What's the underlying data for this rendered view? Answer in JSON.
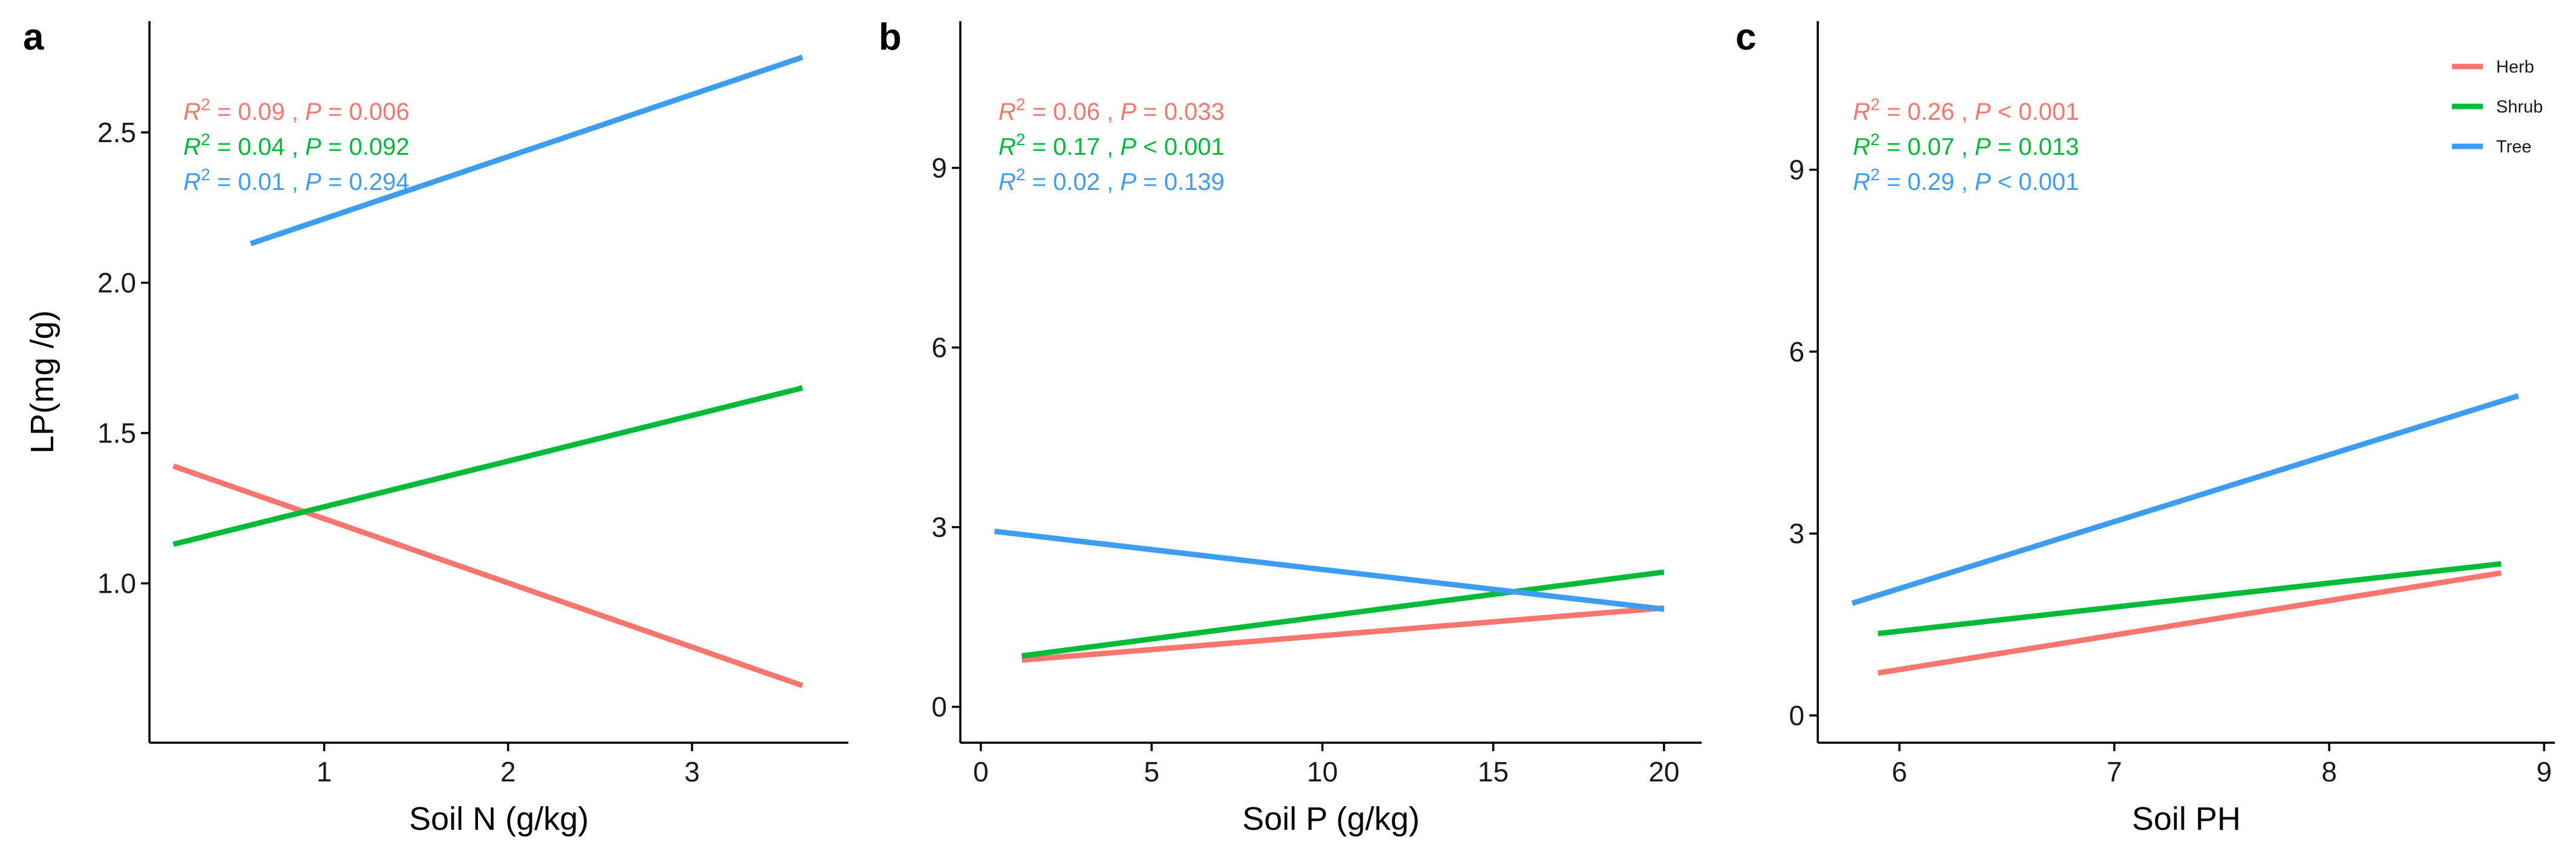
{
  "colors": {
    "Herb": "#f8766d",
    "Shrub": "#00ba38",
    "Tree": "#3d9df3",
    "axis": "#000000"
  },
  "legend": {
    "placement": "top-right",
    "entries": [
      "Herb",
      "Shrub",
      "Tree"
    ]
  },
  "chart_data": [
    {
      "type": "line",
      "panel": "a",
      "title": "",
      "xlabel": "Soil N (g/kg)",
      "ylabel": "LP(mg /g)",
      "xlim": [
        0.05,
        3.85
      ],
      "ylim": [
        0.47,
        2.87
      ],
      "xticks": [
        1,
        2,
        3
      ],
      "yticks": [
        1.0,
        1.5,
        2.0,
        2.5
      ],
      "ytick_labels": [
        "1.0",
        "1.5",
        "2.0",
        "2.5"
      ],
      "series": [
        {
          "name": "Herb",
          "x": [
            0.18,
            3.6
          ],
          "y": [
            1.39,
            0.66
          ]
        },
        {
          "name": "Shrub",
          "x": [
            0.18,
            3.6
          ],
          "y": [
            1.13,
            1.65
          ]
        },
        {
          "name": "Tree",
          "x": [
            0.6,
            3.6
          ],
          "y": [
            2.13,
            2.75
          ]
        }
      ],
      "annotations": [
        {
          "series": "Herb",
          "r2": "0.09",
          "p_op": "=",
          "p": "0.006"
        },
        {
          "series": "Shrub",
          "r2": "0.04",
          "p_op": "=",
          "p": "0.092"
        },
        {
          "series": "Tree",
          "r2": "0.01",
          "p_op": "=",
          "p": "0.294"
        }
      ]
    },
    {
      "type": "line",
      "panel": "b",
      "title": "",
      "xlabel": "Soil  P (g/kg)",
      "ylabel": "",
      "xlim": [
        -0.6,
        21.1
      ],
      "ylim": [
        -0.6,
        11.45
      ],
      "xticks": [
        0,
        5,
        10,
        15,
        20
      ],
      "yticks": [
        0,
        3,
        6,
        9
      ],
      "ytick_labels": [
        "0",
        "3",
        "6",
        "9"
      ],
      "series": [
        {
          "name": "Herb",
          "x": [
            1.2,
            20
          ],
          "y": [
            0.78,
            1.65
          ]
        },
        {
          "name": "Shrub",
          "x": [
            1.2,
            20
          ],
          "y": [
            0.85,
            2.25
          ]
        },
        {
          "name": "Tree",
          "x": [
            0.4,
            20
          ],
          "y": [
            2.93,
            1.63
          ]
        }
      ],
      "annotations": [
        {
          "series": "Herb",
          "r2": "0.06",
          "p_op": "=",
          "p": "0.033"
        },
        {
          "series": "Shrub",
          "r2": "0.17",
          "p_op": "<",
          "p": "0.001"
        },
        {
          "series": "Tree",
          "r2": "0.02",
          "p_op": "=",
          "p": "0.139"
        }
      ]
    },
    {
      "type": "line",
      "panel": "c",
      "title": "",
      "xlabel": "Soil PH",
      "ylabel": "",
      "xlim": [
        5.62,
        9.05
      ],
      "ylim": [
        -0.45,
        11.45
      ],
      "xticks": [
        6,
        7,
        8,
        9
      ],
      "yticks": [
        0,
        3,
        6,
        9
      ],
      "ytick_labels": [
        "0",
        "3",
        "6",
        "9"
      ],
      "series": [
        {
          "name": "Herb",
          "x": [
            5.9,
            8.8
          ],
          "y": [
            0.7,
            2.35
          ]
        },
        {
          "name": "Shrub",
          "x": [
            5.9,
            8.8
          ],
          "y": [
            1.35,
            2.5
          ]
        },
        {
          "name": "Tree",
          "x": [
            5.78,
            8.88
          ],
          "y": [
            1.85,
            5.27
          ]
        }
      ],
      "annotations": [
        {
          "series": "Herb",
          "r2": "0.26",
          "p_op": "<",
          "p": "0.001"
        },
        {
          "series": "Shrub",
          "r2": "0.07",
          "p_op": "=",
          "p": "0.013"
        },
        {
          "series": "Tree",
          "r2": "0.29",
          "p_op": "<",
          "p": "0.001"
        }
      ]
    }
  ]
}
